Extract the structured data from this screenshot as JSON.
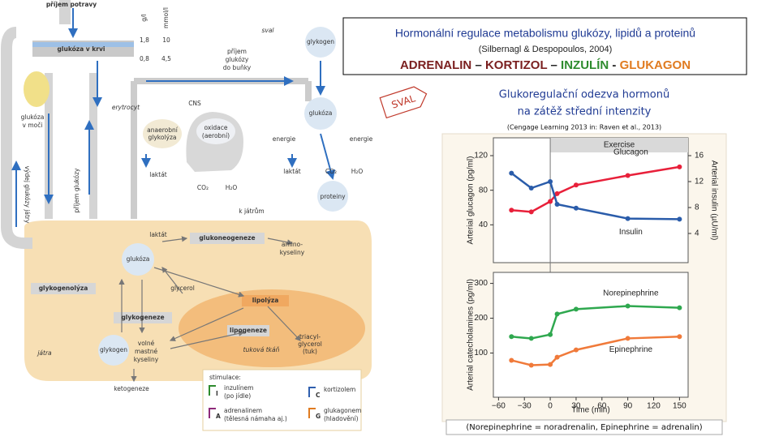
{
  "header": {
    "title": "Hormonální regulace metabolismu glukózy, lipidů  a proteinů",
    "source": "(Silbernagl & Despopoulos, 2004)",
    "hormones": [
      {
        "text": "ADRENALIN",
        "color": "#7a1f1f"
      },
      {
        "text": " – ",
        "color": "#222222"
      },
      {
        "text": "KORTIZOL",
        "color": "#7a1f1f"
      },
      {
        "text": " – ",
        "color": "#222222"
      },
      {
        "text": "INZULÍN",
        "color": "#2e8b2e"
      },
      {
        "text": " - ",
        "color": "#222222"
      },
      {
        "text": "GLUKAGON",
        "color": "#e07b20"
      }
    ],
    "muscle_tag": "SVAL"
  },
  "diagram": {
    "labels": [
      "příjem potravy",
      "glukóza v krvi",
      "g/l",
      "mmol/l",
      "1,8",
      "10",
      "0,8",
      "4,5",
      "sval",
      "glykogen",
      "příjem",
      "glukózy",
      "do buňky",
      "glukóza",
      "erytrocyt",
      "CNS",
      "anaerobní",
      "glykolýza",
      "oxidace",
      "(aerobní)",
      "energie",
      "energie",
      "laktát",
      "laktát",
      "CO₂",
      "H₂O",
      "CO₂",
      "H₂O",
      "proteiny",
      "k játrům",
      "laktát",
      "glukoneogeneze",
      "amino-",
      "kyseliny",
      "glukóza",
      "glykogenolýza",
      "glycerol",
      "lipolýza",
      "glykogeneze",
      "lipogeneze",
      "triacyl-",
      "glycerol",
      "(tuk)",
      "glykogen",
      "volné",
      "mastné",
      "kyseliny",
      "tuková tkáň",
      "játra",
      "ketogeneze",
      "glukóza",
      "v moči",
      "výdej glukózy játry",
      "příjem glukózy"
    ],
    "legend": {
      "title": "stimulace:",
      "items": [
        {
          "key": "I",
          "color": "#2e8b2e",
          "lines": [
            "inzulínem",
            "(po jídle)"
          ]
        },
        {
          "key": "A",
          "color": "#8e2a7a",
          "lines": [
            "adrenalinem",
            "(tělesná námaha aj.)"
          ]
        },
        {
          "key": "C",
          "color": "#2f5fae",
          "lines": [
            "kortizolem"
          ]
        },
        {
          "key": "G",
          "color": "#e07b20",
          "lines": [
            "glukagonem",
            "(hladovění)"
          ]
        }
      ]
    }
  },
  "response": {
    "title_lines": [
      "Glukoregulační odezva hormonů",
      "na zátěž střední intenzity"
    ],
    "source": "(Cengage Learning 2013 in: Raven et al., 2013)",
    "footnote": "(Norepinephrine = noradrenalin, Epinephrine = adrenalin)"
  },
  "chart_data": [
    {
      "type": "line",
      "ylabel": "Arterial glucagon (pg/ml)",
      "y2label": "Arterial insulin (µU/ml)",
      "annotations": [
        {
          "text": "Exercise",
          "x": 0
        }
      ],
      "x": [
        -45,
        -22,
        0,
        8,
        30,
        90,
        150
      ],
      "xlim": [
        -66,
        160
      ],
      "ylim": [
        0,
        120
      ],
      "yticks": [
        40,
        80,
        120
      ],
      "y2lim": [
        0,
        16
      ],
      "y2ticks": [
        4,
        8,
        12,
        16
      ],
      "series": [
        {
          "name": "Glucagon",
          "color": "#e8203a",
          "values": [
            57,
            55,
            67,
            76,
            86,
            97,
            107
          ]
        },
        {
          "name": "Insulin",
          "color": "#2a5caa",
          "axis": "y2",
          "values": [
            13.3,
            11,
            12,
            8.5,
            7.9,
            6.3,
            6.2
          ]
        }
      ]
    },
    {
      "type": "line",
      "ylabel": "Arterial catecholamines (pg/ml)",
      "xlabel": "Time (min)",
      "x": [
        -45,
        -22,
        0,
        8,
        30,
        90,
        150
      ],
      "xlim": [
        -66,
        160
      ],
      "xticks": [
        {
          "value": -60,
          "label": "−60"
        },
        {
          "value": -30,
          "label": "−30"
        },
        0,
        30,
        60,
        90,
        120,
        150
      ],
      "ylim": [
        -20,
        320
      ],
      "yticks": [
        100,
        200,
        300
      ],
      "series": [
        {
          "name": "Norepinephrine",
          "color": "#2fa84f",
          "values": [
            147,
            142,
            153,
            212,
            226,
            235,
            230
          ]
        },
        {
          "name": "Epinephrine",
          "color": "#f07a3a",
          "values": [
            79,
            65,
            67,
            88,
            109,
            142,
            147
          ]
        }
      ]
    }
  ]
}
